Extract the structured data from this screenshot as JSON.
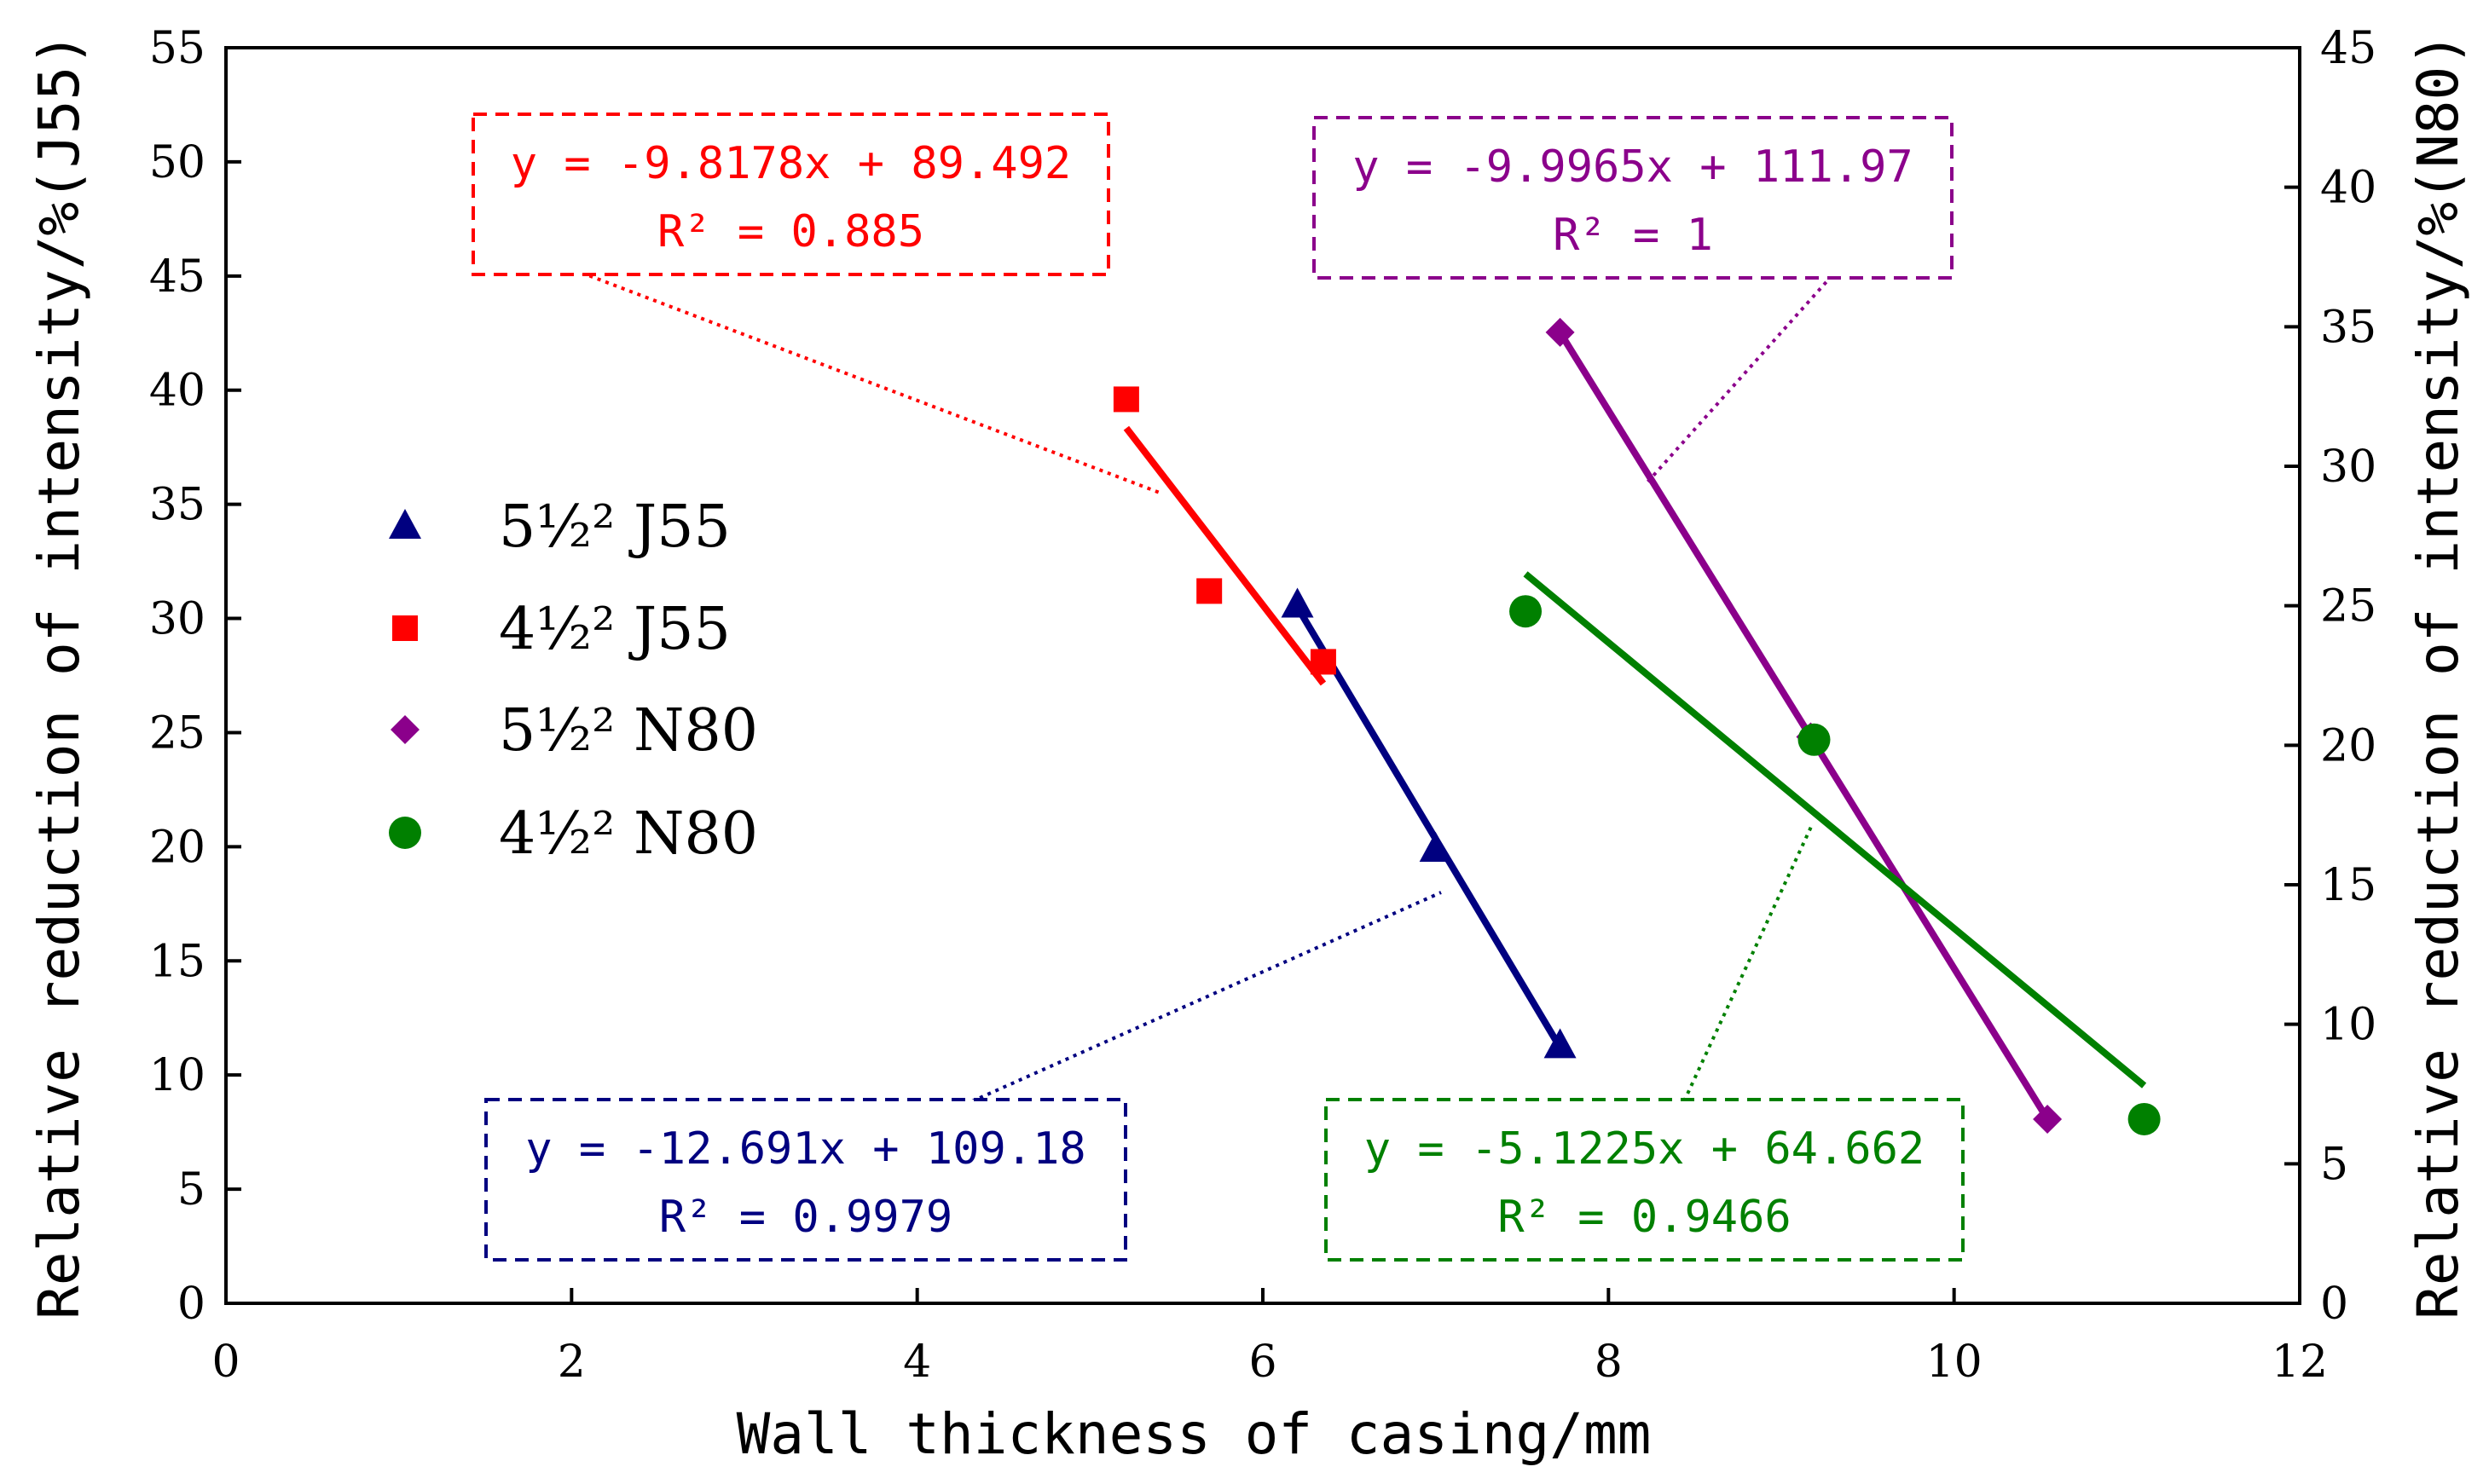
{
  "chart_data": {
    "type": "scatter",
    "title": "",
    "xlabel": "Wall thickness of casing/mm",
    "ylabel_left": "Relative reduction of intensity/%(J55)",
    "ylabel_right": "Relative reduction of intensity/%(N80)",
    "xlim": [
      0,
      12
    ],
    "ylim_left": [
      0,
      55
    ],
    "ylim_right": [
      0,
      45
    ],
    "x_ticks": [
      0,
      2,
      4,
      6,
      8,
      10,
      12
    ],
    "y_ticks_left": [
      0,
      5,
      10,
      15,
      20,
      25,
      30,
      35,
      40,
      45,
      50,
      55
    ],
    "y_ticks_right": [
      0,
      5,
      10,
      15,
      20,
      25,
      30,
      35,
      40,
      45
    ],
    "grid": false,
    "legend_position": "center-left",
    "series": [
      {
        "name": "5½\" J55",
        "legend_label": "5½² J55",
        "marker": "triangle",
        "color": "#000080",
        "axis": "left",
        "points": [
          [
            6.2,
            30.6
          ],
          [
            7.0,
            19.9
          ],
          [
            7.72,
            11.3
          ]
        ],
        "trend": {
          "x_range": [
            6.2,
            7.72
          ],
          "slope": -12.691,
          "intercept": 109.18
        },
        "equation": "y = -12.691x + 109.18",
        "r2_label": "R² = 0.9979"
      },
      {
        "name": "4½\" J55",
        "legend_label": "4½² J55",
        "marker": "square",
        "color": "#ff0000",
        "axis": "left",
        "points": [
          [
            5.21,
            39.6
          ],
          [
            5.69,
            31.2
          ],
          [
            6.35,
            28.1
          ]
        ],
        "trend": {
          "x_range": [
            5.21,
            6.35
          ],
          "slope": -9.8178,
          "intercept": 89.492
        },
        "equation": "y = -9.8178x + 89.492",
        "r2_label": "R² = 0.885"
      },
      {
        "name": "5½\" N80",
        "legend_label": "5½² N80",
        "marker": "diamond",
        "color": "#8b008b",
        "axis": "right",
        "points": [
          [
            7.72,
            34.8
          ],
          [
            9.17,
            20.3
          ],
          [
            10.54,
            6.6
          ]
        ],
        "trend": {
          "x_range": [
            7.72,
            10.54
          ],
          "slope": -9.9965,
          "intercept": 111.97
        },
        "equation": "y = -9.9965x + 111.97",
        "r2_label": "R² = 1"
      },
      {
        "name": "4½\" N80",
        "legend_label": "4½² N80",
        "marker": "circle",
        "color": "#008000",
        "axis": "right",
        "points": [
          [
            7.52,
            24.8
          ],
          [
            9.19,
            20.2
          ],
          [
            11.1,
            6.6
          ]
        ],
        "trend": {
          "x_range": [
            7.52,
            11.1
          ],
          "slope": -5.1225,
          "intercept": 64.662
        },
        "equation": "y = -5.1225x + 64.662",
        "r2_label": "R² = 0.9466"
      }
    ]
  }
}
